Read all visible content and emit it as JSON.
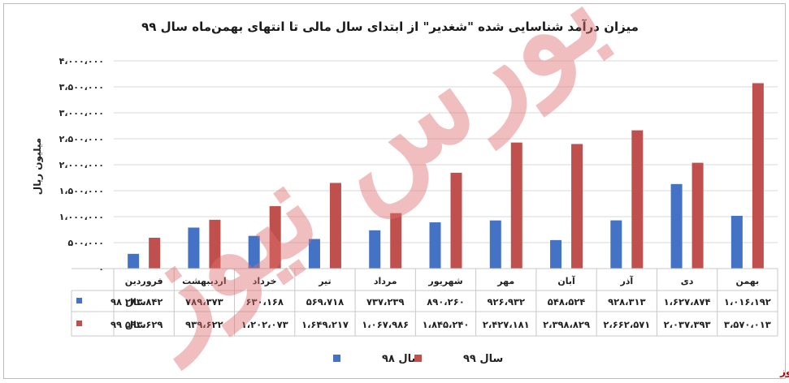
{
  "chart_data": {
    "type": "bar",
    "title": "میزان درآمد شناسایی شده \"شغدیر\" از ابتدای سال مالی تا انتهای بهمن‌ماه سال ۹۹",
    "ylabel": "میلیون ریال",
    "ylim": [
      0,
      4000000
    ],
    "yticks": [
      0,
      500000,
      1000000,
      1500000,
      2000000,
      2500000,
      3000000,
      3500000,
      4000000
    ],
    "ytick_labels": [
      "۰",
      "۵۰۰،۰۰۰",
      "۱،۰۰۰،۰۰۰",
      "۱،۵۰۰،۰۰۰",
      "۲،۰۰۰،۰۰۰",
      "۲،۵۰۰،۰۰۰",
      "۳،۰۰۰،۰۰۰",
      "۳،۵۰۰،۰۰۰",
      "۴،۰۰۰،۰۰۰"
    ],
    "categories": [
      "فروردین",
      "اردیبهشت",
      "خرداد",
      "تیر",
      "مرداد",
      "شهریور",
      "مهر",
      "آبان",
      "آذر",
      "دی",
      "بهمن"
    ],
    "series": [
      {
        "name": "سال ۹۸",
        "color": "#4472c4",
        "values": [
          283842,
          789373,
          630168,
          569718,
          737239,
          890260,
          926932,
          548524,
          928313,
          1627874,
          1016192
        ],
        "labels": [
          "۲۸۳،۸۴۲",
          "۷۸۹،۳۷۳",
          "۶۳۰،۱۶۸",
          "۵۶۹،۷۱۸",
          "۷۳۷،۲۳۹",
          "۸۹۰،۲۶۰",
          "۹۲۶،۹۳۲",
          "۵۴۸،۵۲۴",
          "۹۲۸،۳۱۳",
          "۱،۶۲۷،۸۷۴",
          "۱،۰۱۶،۱۹۲"
        ]
      },
      {
        "name": "سال ۹۹",
        "color": "#c0504d",
        "values": [
          593629,
          939622,
          1202073,
          1649217,
          1067986,
          1845240,
          2427181,
          2398829,
          2662571,
          2037393,
          3570013
        ],
        "labels": [
          "۵۹۳،۶۲۹",
          "۹۳۹،۶۲۲",
          "۱،۲۰۲،۰۷۳",
          "۱،۶۴۹،۲۱۷",
          "۱،۰۶۷،۹۸۶",
          "۱،۸۴۵،۲۴۰",
          "۲،۴۲۷،۱۸۱",
          "۲،۳۹۸،۸۲۹",
          "۲،۶۶۲،۵۷۱",
          "۲،۰۳۷،۳۹۳",
          "۳،۵۷۰،۰۱۳"
        ]
      }
    ],
    "grid": true,
    "legend": "bottom-center",
    "data_table": true
  },
  "watermark": "بورس نیوز",
  "brand": "بورس نیوز"
}
